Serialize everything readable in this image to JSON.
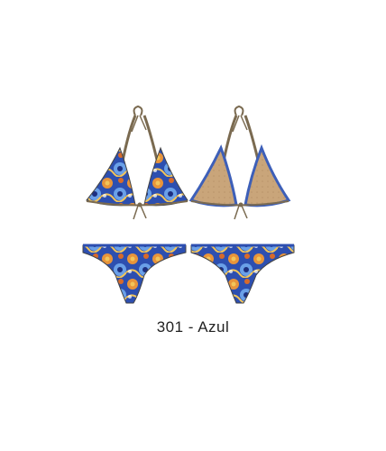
{
  "caption": "301 - Azul",
  "colors": {
    "print_base": "#2d4fb0",
    "print_dark": "#1d2f80",
    "print_light": "#6aa0e8",
    "print_orange": "#e8943a",
    "print_yellow": "#f2c55a",
    "lining": "#c9a57a",
    "lining_dark": "#9c7a52",
    "strap": "#7a6a50"
  },
  "pieces": [
    {
      "name": "top-front",
      "view": "front"
    },
    {
      "name": "top-back",
      "view": "back"
    },
    {
      "name": "bottom-front",
      "view": "front"
    },
    {
      "name": "bottom-back",
      "view": "back"
    }
  ]
}
